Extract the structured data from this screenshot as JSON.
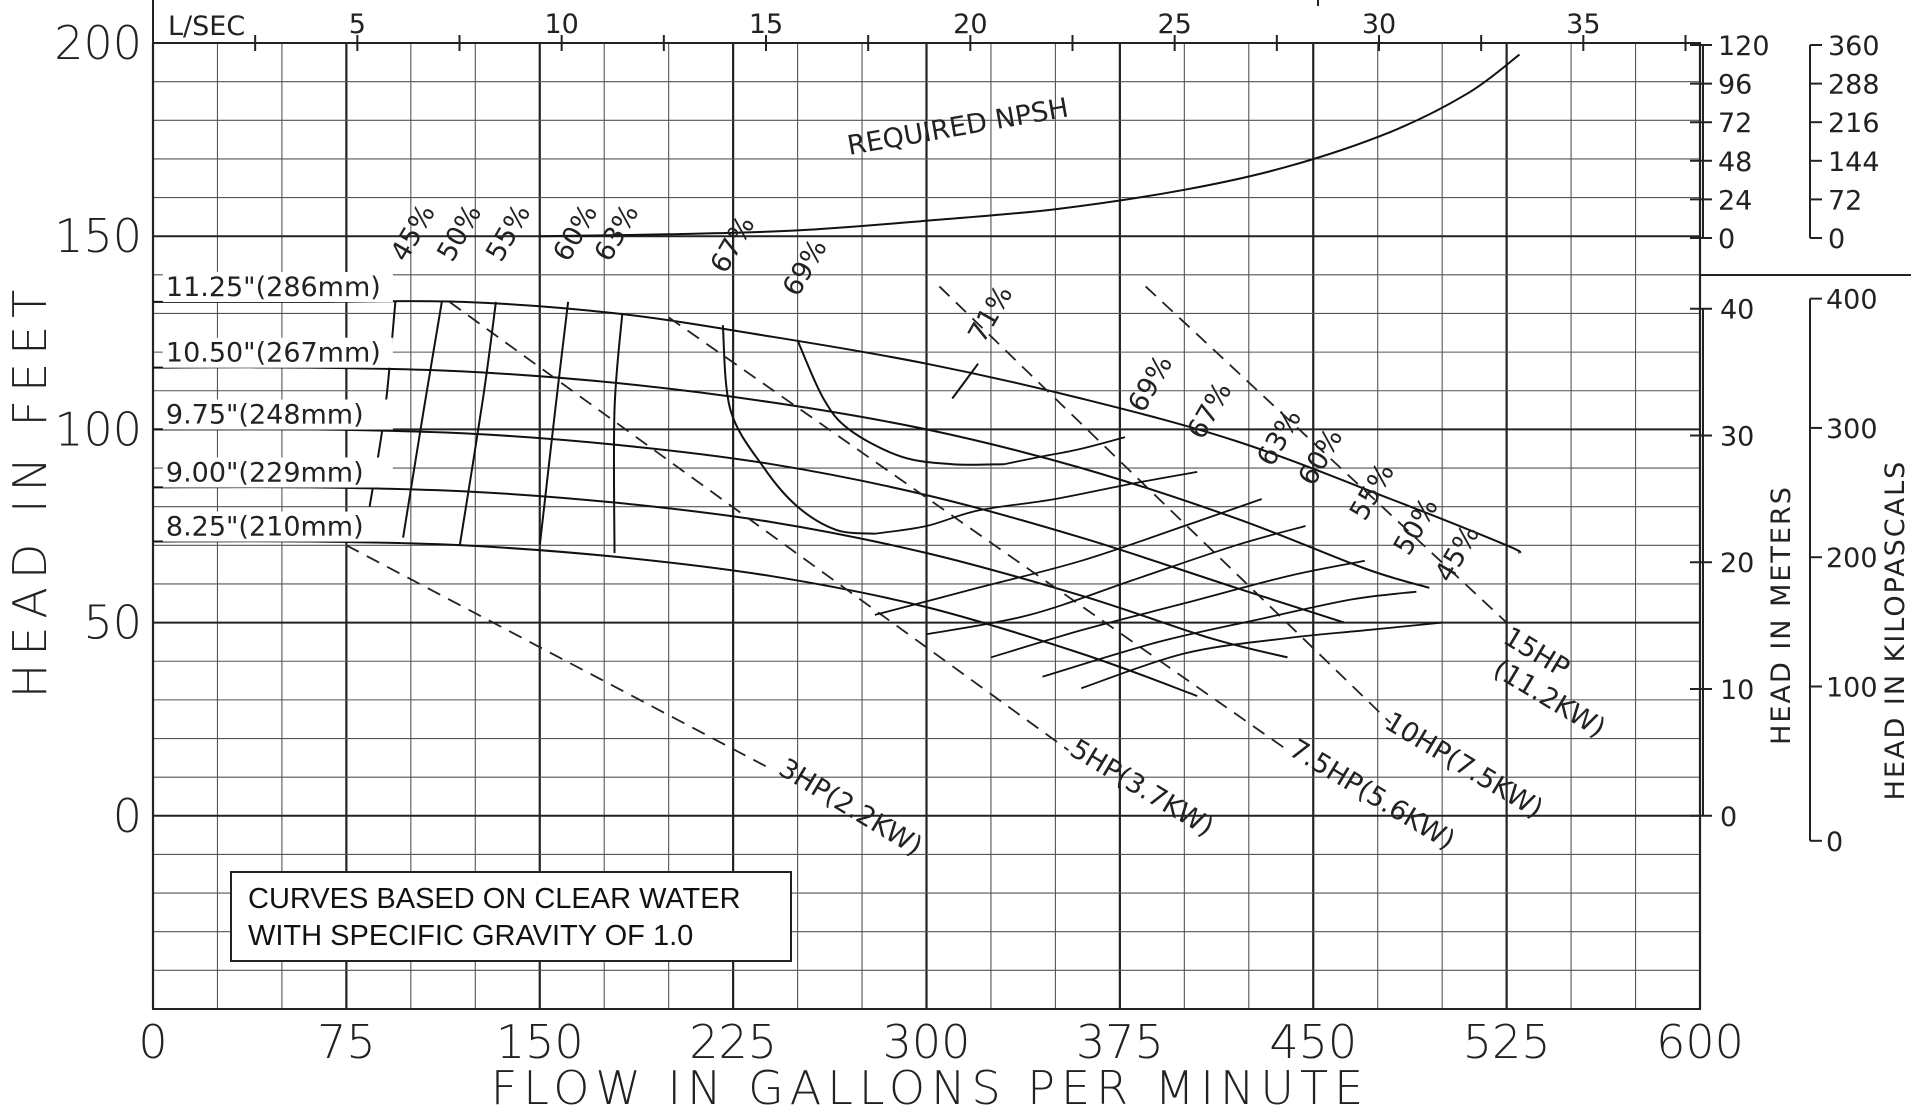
{
  "chart_data": {
    "type": "line",
    "xlabel": "FLOW IN GALLONS PER MINUTE",
    "ylabel": "HEAD IN FEET",
    "xlim": [
      0,
      600
    ],
    "ylim": [
      -50,
      200
    ],
    "x_ticks": [
      "0",
      "75",
      "150",
      "225",
      "300",
      "375",
      "450",
      "525",
      "600"
    ],
    "y_ticks": [
      "200",
      "150",
      "100",
      "50",
      "0"
    ],
    "top_axis": {
      "label": "L/SEC",
      "ticks": [
        "5",
        "10",
        "15",
        "20",
        "25",
        "30",
        "35"
      ],
      "tick_values": [
        5,
        10,
        15,
        20,
        25,
        30,
        35
      ]
    },
    "npsh_ft_ticks": [
      "120",
      "96",
      "72",
      "48",
      "24",
      "0"
    ],
    "npsh_ft_values": [
      120,
      96,
      72,
      48,
      24,
      0
    ],
    "npsh_kpa_ticks": [
      "360",
      "288",
      "216",
      "144",
      "72",
      "0"
    ],
    "right_axis_meters": {
      "label": "HEAD IN METERS",
      "ticks": [
        "40",
        "30",
        "20",
        "10",
        "0"
      ],
      "tick_values": [
        40,
        30,
        20,
        10,
        0
      ]
    },
    "right_axis_kpa": {
      "label": "HEAD IN KILOPASCALS",
      "ticks": [
        "400",
        "300",
        "200",
        "100",
        "0"
      ],
      "tick_values": [
        400,
        300,
        200,
        100,
        0
      ]
    },
    "grid": true,
    "note": [
      "CURVES BASED ON CLEAR WATER",
      "WITH SPECIFIC GRAVITY OF 1.0"
    ],
    "impeller_curves": [
      {
        "name": "11.25\"(286mm)",
        "label_at": [
          5,
          134
        ],
        "points": [
          [
            0,
            133
          ],
          [
            60,
            133
          ],
          [
            120,
            133
          ],
          [
            180,
            130
          ],
          [
            240,
            124
          ],
          [
            300,
            117
          ],
          [
            360,
            108
          ],
          [
            420,
            97
          ],
          [
            480,
            82
          ],
          [
            525,
            70
          ],
          [
            530,
            68
          ]
        ]
      },
      {
        "name": "10.50\"(267mm)",
        "label_at": [
          5,
          117
        ],
        "points": [
          [
            0,
            116
          ],
          [
            60,
            116
          ],
          [
            120,
            115
          ],
          [
            180,
            112
          ],
          [
            240,
            107
          ],
          [
            300,
            100
          ],
          [
            360,
            90
          ],
          [
            420,
            77
          ],
          [
            470,
            64
          ],
          [
            495,
            59
          ]
        ]
      },
      {
        "name": "9.75\"(248mm)",
        "label_at": [
          5,
          101
        ],
        "points": [
          [
            0,
            100
          ],
          [
            60,
            100
          ],
          [
            120,
            99
          ],
          [
            180,
            96
          ],
          [
            240,
            91
          ],
          [
            300,
            83
          ],
          [
            360,
            72
          ],
          [
            420,
            59
          ],
          [
            462,
            50
          ]
        ]
      },
      {
        "name": "9.00\"(229mm)",
        "label_at": [
          5,
          86
        ],
        "points": [
          [
            0,
            85
          ],
          [
            60,
            85
          ],
          [
            120,
            84
          ],
          [
            180,
            81
          ],
          [
            240,
            76
          ],
          [
            300,
            68
          ],
          [
            360,
            57
          ],
          [
            410,
            46
          ],
          [
            440,
            41
          ]
        ]
      },
      {
        "name": "8.25\"(210mm)",
        "label_at": [
          5,
          72
        ],
        "points": [
          [
            0,
            71
          ],
          [
            60,
            71
          ],
          [
            120,
            70
          ],
          [
            180,
            67
          ],
          [
            240,
            62
          ],
          [
            300,
            54
          ],
          [
            360,
            42
          ],
          [
            405,
            31
          ]
        ]
      }
    ],
    "npsh_curve": {
      "name": "REQUIRED NPSH",
      "label_at": [
        270,
        171
      ],
      "label_angle": -10,
      "points": [
        [
          150,
          150
        ],
        [
          200,
          150.5
        ],
        [
          250,
          151.5
        ],
        [
          300,
          154
        ],
        [
          350,
          157
        ],
        [
          400,
          162
        ],
        [
          440,
          168
        ],
        [
          480,
          177
        ],
        [
          510,
          187
        ],
        [
          530,
          197
        ]
      ]
    },
    "hp_lines": [
      {
        "name": "3HP(2.2KW)",
        "points": [
          [
            75,
            70
          ],
          [
            240,
            12
          ]
        ],
        "label_at": [
          242,
          11
        ],
        "label_angle": 31
      },
      {
        "name": "5HP(3.7KW)",
        "points": [
          [
            115,
            133
          ],
          [
            355,
            17
          ]
        ],
        "label_at": [
          355,
          16
        ],
        "label_angle": 31
      },
      {
        "name": "7.5HP(5.6KW)",
        "points": [
          [
            200,
            129
          ],
          [
            440,
            17
          ]
        ],
        "label_at": [
          440,
          16
        ],
        "label_angle": 31
      },
      {
        "name": "10HP(7.5KW)",
        "points": [
          [
            305,
            137
          ],
          [
            480,
            24
          ]
        ],
        "label_at": [
          477,
          23
        ],
        "label_angle": 31
      },
      {
        "name": "15HP\n(11.2KW)",
        "points": [
          [
            385,
            137
          ],
          [
            525,
            50
          ]
        ],
        "label_at": [
          523,
          45
        ],
        "label_angle": 31
      }
    ],
    "efficiency_curves": [
      {
        "name": "45%",
        "label_at": [
          98,
          143
        ],
        "points": [
          [
            94,
            133
          ],
          [
            90,
            105
          ],
          [
            84,
            80
          ]
        ],
        "points_right": [
          [
            500,
            50
          ],
          [
            470,
            48
          ],
          [
            440,
            46
          ],
          [
            400,
            42
          ],
          [
            360,
            33
          ]
        ]
      },
      {
        "name": "50%",
        "label_at": [
          116,
          143
        ],
        "points": [
          [
            112,
            133
          ],
          [
            105,
            105
          ],
          [
            97,
            72
          ]
        ],
        "points_right": [
          [
            490,
            58
          ],
          [
            465,
            56
          ],
          [
            430,
            51
          ],
          [
            390,
            45
          ],
          [
            345,
            36
          ]
        ]
      },
      {
        "name": "55%",
        "label_at": [
          135,
          143
        ],
        "points": [
          [
            133,
            133
          ],
          [
            128,
            108
          ],
          [
            119,
            70
          ]
        ],
        "points_right": [
          [
            470,
            66
          ],
          [
            440,
            62
          ],
          [
            400,
            55
          ],
          [
            360,
            48
          ],
          [
            325,
            41
          ]
        ]
      },
      {
        "name": "60%",
        "label_at": [
          161,
          143
        ],
        "points": [
          [
            161,
            133
          ],
          [
            156,
            105
          ],
          [
            150,
            70
          ]
        ],
        "points_right": [
          [
            447,
            75
          ],
          [
            420,
            70
          ],
          [
            380,
            61
          ],
          [
            340,
            52
          ],
          [
            300,
            47
          ]
        ]
      },
      {
        "name": "63%",
        "label_at": [
          177,
          143
        ],
        "points": [
          [
            182,
            130
          ],
          [
            179,
            105
          ],
          [
            179,
            68
          ]
        ],
        "points_right": [
          [
            430,
            82
          ],
          [
            400,
            75
          ],
          [
            360,
            66
          ],
          [
            320,
            59
          ],
          [
            280,
            52
          ]
        ]
      },
      {
        "name": "67%",
        "label_at": [
          222,
          140
        ],
        "points": [
          [
            221,
            127
          ],
          [
            224,
            105
          ],
          [
            237,
            90
          ],
          [
            250,
            80
          ],
          [
            265,
            74
          ],
          [
            280,
            73
          ]
        ],
        "points_right": [
          [
            405,
            89
          ],
          [
            380,
            86
          ],
          [
            350,
            82
          ],
          [
            320,
            79
          ],
          [
            300,
            75
          ],
          [
            280,
            73
          ]
        ]
      },
      {
        "name": "69%",
        "label_at": [
          250,
          134
        ],
        "points": [
          [
            250,
            123
          ],
          [
            260,
            108
          ],
          [
            270,
            100
          ],
          [
            290,
            93
          ],
          [
            310,
            91
          ],
          [
            330,
            91
          ]
        ],
        "points_right": [
          [
            377,
            98
          ],
          [
            360,
            95
          ],
          [
            345,
            93
          ],
          [
            330,
            91
          ]
        ]
      },
      {
        "name": "71%",
        "label_at": [
          322,
          122
        ],
        "points": [
          [
            310,
            108
          ],
          [
            320,
            117
          ]
        ],
        "points_right": []
      }
    ],
    "right_eff_labels": [
      {
        "name": "69%",
        "label_at": [
          384,
          104
        ]
      },
      {
        "name": "67%",
        "label_at": [
          407,
          97
        ]
      },
      {
        "name": "63%",
        "label_at": [
          434,
          90
        ]
      },
      {
        "name": "60%",
        "label_at": [
          450,
          85
        ]
      },
      {
        "name": "55%",
        "label_at": [
          470,
          76
        ]
      },
      {
        "name": "50%",
        "label_at": [
          487,
          67
        ]
      },
      {
        "name": "45%",
        "label_at": [
          503,
          60
        ]
      }
    ]
  }
}
